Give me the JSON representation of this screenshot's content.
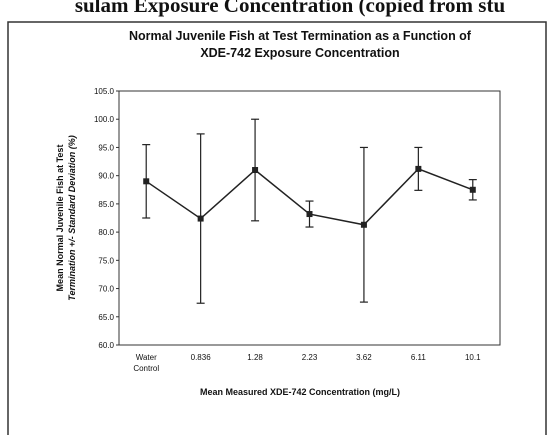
{
  "header": "sulam Exposure Concentration (copied from stu",
  "chart_data": {
    "type": "line",
    "title": [
      "Normal Juvenile Fish at Test Termination as a Function of",
      "XDE-742 Exposure Concentration"
    ],
    "x_label": "Mean Measured XDE-742 Concentration (mg/L)",
    "y_label": [
      "Mean Normal Juvenile Fish at Test",
      "Termination +/- Standard Deviation (%)"
    ],
    "categories": [
      "Water Control",
      "0.836",
      "1.28",
      "2.23",
      "3.62",
      "6.11",
      "10.1"
    ],
    "values": [
      89.0,
      82.4,
      91.0,
      83.2,
      81.3,
      91.2,
      87.5
    ],
    "errors": [
      6.5,
      15.0,
      9.0,
      2.3,
      13.7,
      3.8,
      1.8
    ],
    "color": "#222222",
    "ylim": [
      60,
      105
    ],
    "yticks": [
      {
        "value": 60,
        "label": "60.0"
      },
      {
        "value": 65,
        "label": "65.0"
      },
      {
        "value": 70,
        "label": "70.0"
      },
      {
        "value": 75,
        "label": "75.0"
      },
      {
        "value": 80,
        "label": "80.0"
      },
      {
        "value": 85,
        "label": "85.0"
      },
      {
        "value": 90,
        "label": "90.0"
      },
      {
        "value": 95,
        "label": "95.0"
      },
      {
        "value": 100,
        "label": "100.0"
      },
      {
        "value": 105,
        "label": "105.0"
      }
    ],
    "grid": false
  }
}
